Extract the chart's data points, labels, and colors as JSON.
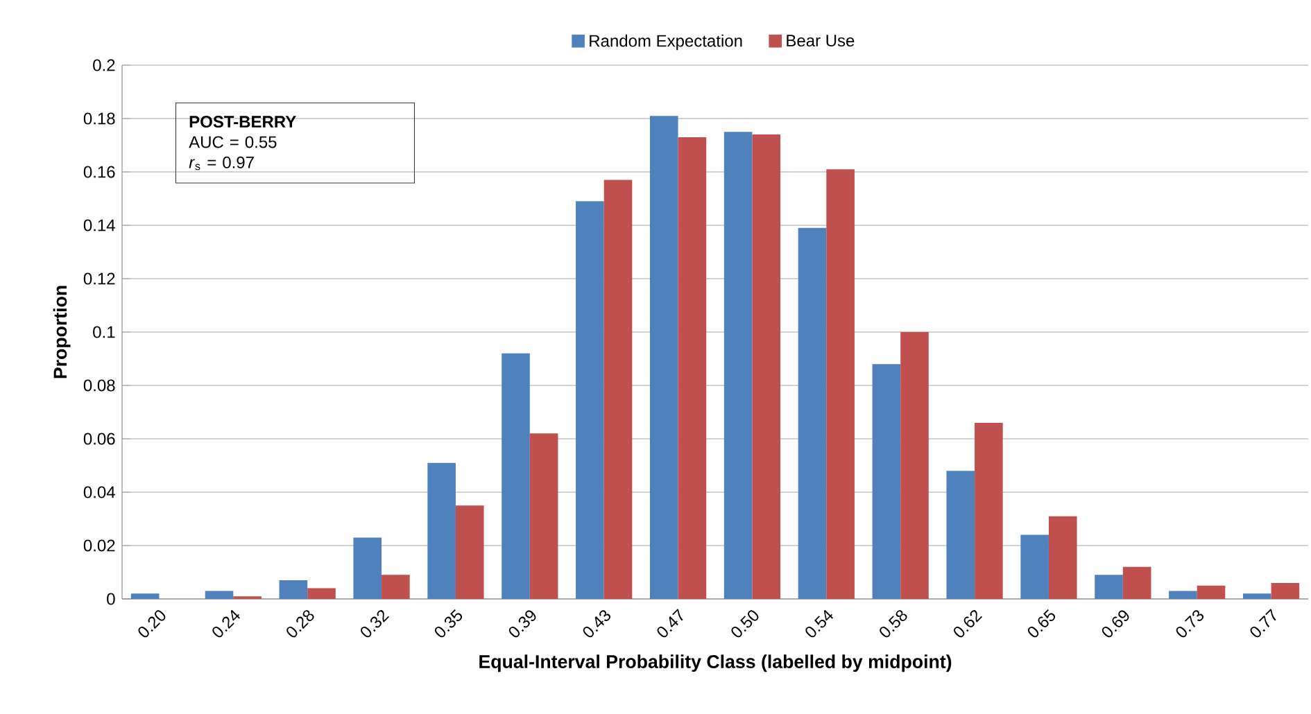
{
  "chart_data": {
    "type": "bar",
    "xlabel": "Equal-Interval Probability Class (labelled by midpoint)",
    "ylabel": "Proportion",
    "categories": [
      "0.20",
      "0.24",
      "0.28",
      "0.32",
      "0.35",
      "0.39",
      "0.43",
      "0.47",
      "0.50",
      "0.54",
      "0.58",
      "0.62",
      "0.65",
      "0.69",
      "0.73",
      "0.77"
    ],
    "series": [
      {
        "name": "Random Expectation",
        "color": "#4f81bd",
        "values": [
          0.002,
          0.003,
          0.007,
          0.023,
          0.051,
          0.092,
          0.149,
          0.181,
          0.175,
          0.139,
          0.088,
          0.048,
          0.024,
          0.009,
          0.003,
          0.002
        ]
      },
      {
        "name": "Bear Use",
        "color": "#c0504d",
        "values": [
          0,
          0.001,
          0.004,
          0.009,
          0.035,
          0.062,
          0.157,
          0.173,
          0.174,
          0.161,
          0.1,
          0.066,
          0.031,
          0.012,
          0.005,
          0.006
        ]
      }
    ],
    "ylim": [
      0,
      0.2
    ],
    "yticks": [
      0,
      0.02,
      0.04,
      0.06,
      0.08,
      0.1,
      0.12,
      0.14,
      0.16,
      0.18,
      0.2
    ],
    "grid": "y",
    "legend": "top",
    "annotations": [
      "**POST-BERRY**",
      "AUC = 0.55",
      "*r*$_{s}$ = 0.97"
    ]
  }
}
